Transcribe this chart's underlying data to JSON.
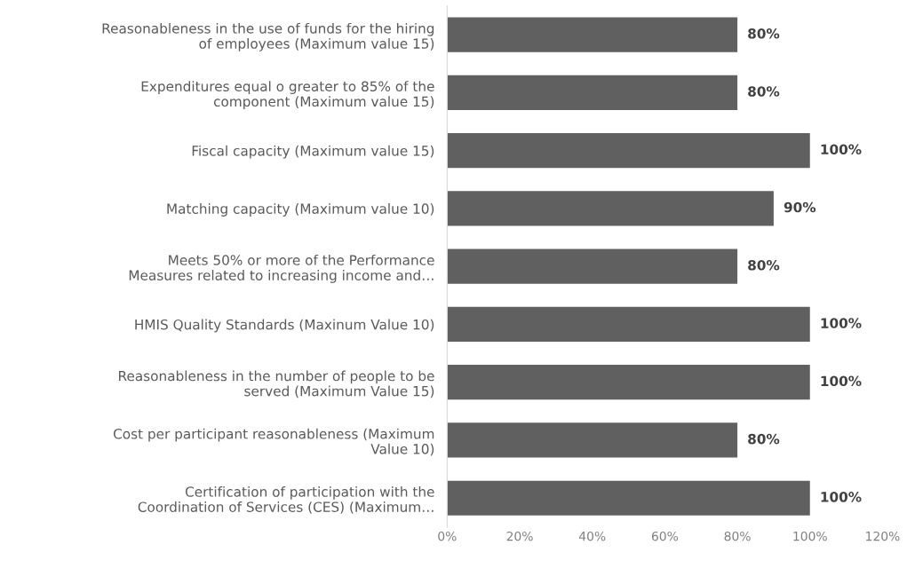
{
  "chart_data": {
    "type": "bar",
    "orientation": "horizontal",
    "categories": [
      "Reasonableness in the use of funds for the hiring\nof employees (Maximum value 15)",
      "Expenditures equal o greater to 85% of the\ncomponent (Maximum value 15)",
      "Fiscal capacity (Maximum value 15)",
      "Matching capacity (Maximum value 10)",
      "Meets 50% or more of the Performance\nMeasures related to increasing income and…",
      "HMIS Quality Standards (Maxinum Value 10)",
      "Reasonableness in the number of people to be\nserved (Maximum Value 15)",
      "Cost per participant reasonableness (Maximum\nValue 10)",
      "Certification of participation with the\nCoordination of Services (CES) (Maximum…"
    ],
    "values": [
      80,
      80,
      100,
      90,
      80,
      100,
      100,
      80,
      100
    ],
    "value_labels": [
      "80%",
      "80%",
      "100%",
      "90%",
      "80%",
      "100%",
      "100%",
      "80%",
      "100%"
    ],
    "color": "#606060",
    "xlim": [
      0,
      120
    ],
    "xticks": [
      {
        "value": 0,
        "label": "0%"
      },
      {
        "value": 20,
        "label": "20%"
      },
      {
        "value": 40,
        "label": "40%"
      },
      {
        "value": 60,
        "label": "60%"
      },
      {
        "value": 80,
        "label": "80%"
      },
      {
        "value": 100,
        "label": "100%"
      },
      {
        "value": 120,
        "label": "120%"
      }
    ],
    "grid": false,
    "legend": false
  }
}
